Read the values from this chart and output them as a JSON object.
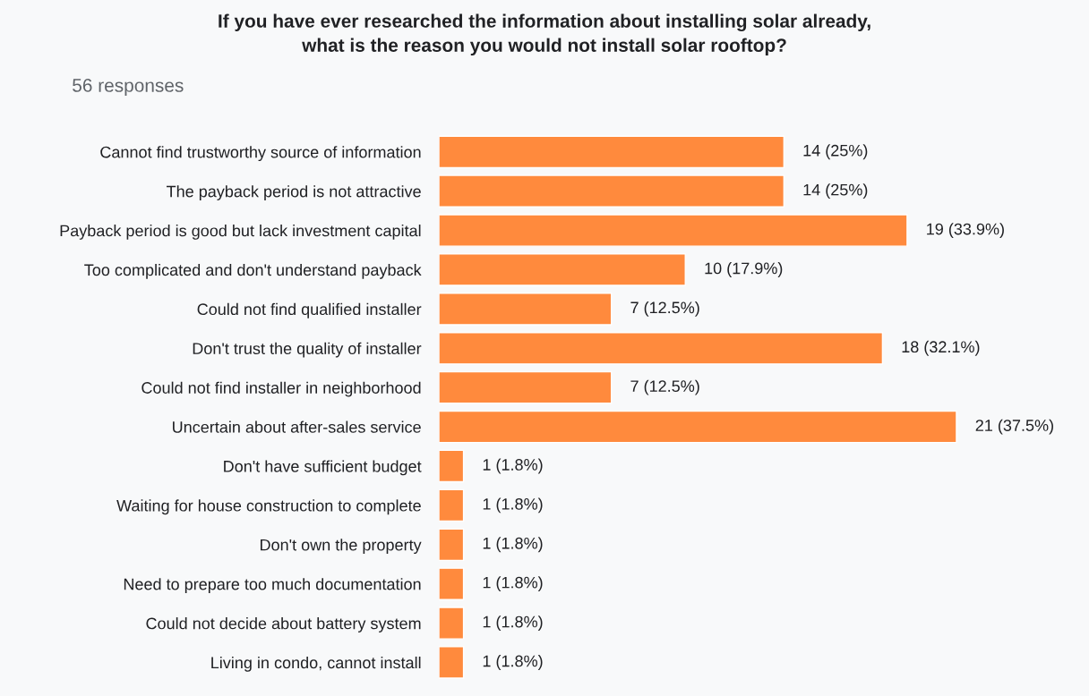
{
  "chart_data": {
    "type": "bar",
    "orientation": "horizontal",
    "title": "If you have ever researched the information about installing solar already,\nwhat is the reason you would not install solar rooftop?",
    "subtitle": "56 responses",
    "categories": [
      "Cannot find trustworthy source of information",
      "The payback period is not attractive",
      "Payback period is good but lack investment capital",
      "Too complicated and don't understand payback",
      "Could not find qualified installer",
      "Don't trust the quality of installer",
      "Could not find installer in neighborhood",
      "Uncertain about after-sales service",
      "Don't have sufficient budget",
      "Waiting for house construction to complete",
      "Don't own the property",
      "Need to prepare too much documentation",
      "Could not decide about battery system",
      "Living in condo, cannot install"
    ],
    "values": [
      14,
      14,
      19,
      10,
      7,
      18,
      7,
      21,
      1,
      1,
      1,
      1,
      1,
      1
    ],
    "value_labels": [
      "14 (25%)",
      "14 (25%)",
      "19 (33.9%)",
      "10 (17.9%)",
      "7 (12.5%)",
      "18 (32.1%)",
      "7 (12.5%)",
      "21 (37.5%)",
      "1 (1.8%)",
      "1 (1.8%)",
      "1 (1.8%)",
      "1 (1.8%)",
      "1 (1.8%)",
      "1 (1.8%)"
    ],
    "color": "#ff8a3d"
  }
}
